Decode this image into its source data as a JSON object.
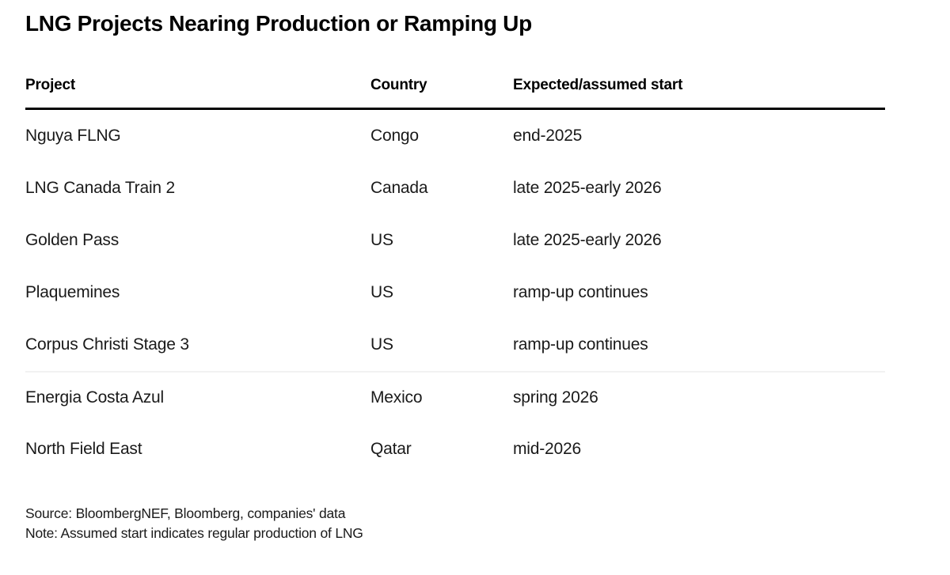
{
  "chart_data": {
    "type": "table",
    "title": "LNG Projects Nearing Production or Ramping Up",
    "columns": [
      "Project",
      "Country",
      "Expected/assumed start"
    ],
    "rows": [
      [
        "Nguya FLNG",
        "Congo",
        "end-2025"
      ],
      [
        "LNG Canada Train 2",
        "Canada",
        "late 2025-early 2026"
      ],
      [
        "Golden Pass",
        "US",
        "late 2025-early 2026"
      ],
      [
        "Plaquemines",
        "US",
        "ramp-up continues"
      ],
      [
        "Corpus Christi Stage 3",
        "US",
        "ramp-up continues"
      ],
      [
        "Energia Costa Azul",
        "Mexico",
        "spring 2026"
      ],
      [
        "North Field East",
        "Qatar",
        "mid-2026"
      ]
    ],
    "source": "Source: BloombergNEF, Bloomberg, companies' data",
    "note": "Note: Assumed start indicates regular production of LNG",
    "layout_hints": {
      "grid": "off",
      "header_rule": "thick black under column headers",
      "row_divider_between": [
        "Corpus Christi Stage 3",
        "Energia Costa Azul"
      ]
    }
  },
  "colors": {
    "title_text": "#000000",
    "body_text": "#1a1a1a",
    "header_rule": "#000000",
    "row_divider": "#f2f2f2",
    "background": "#ffffff"
  }
}
